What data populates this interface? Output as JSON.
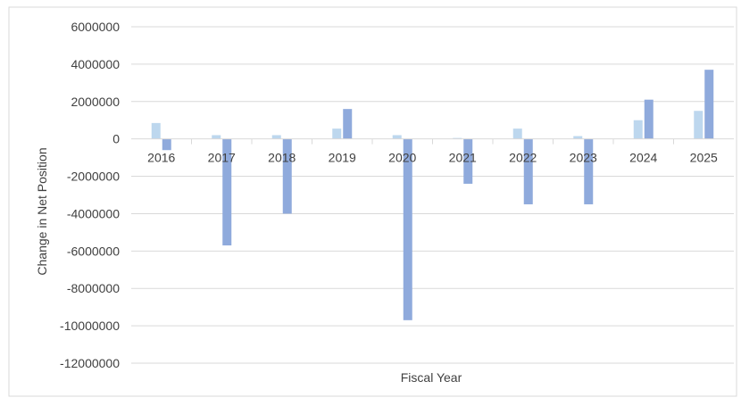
{
  "chart_data": {
    "type": "bar",
    "title": "",
    "xlabel": "Fiscal Year",
    "ylabel": "Change in Net Position",
    "ylim": [
      -12000000,
      6000000
    ],
    "yticks": [
      6000000,
      4000000,
      2000000,
      0,
      -2000000,
      -4000000,
      -6000000,
      -8000000,
      -10000000,
      -12000000
    ],
    "ytick_labels": [
      "6000000",
      "4000000",
      "2000000",
      "0",
      "-2000000",
      "-4000000",
      "-6000000",
      "-8000000",
      "-10000000",
      "-12000000"
    ],
    "grid": true,
    "legend": "none",
    "categories": [
      "2016",
      "2017",
      "2018",
      "2019",
      "2020",
      "2021",
      "2022",
      "2023",
      "2024",
      "2025"
    ],
    "series": [
      {
        "color": "#bdd7ee",
        "values": [
          850000,
          200000,
          200000,
          550000,
          200000,
          50000,
          550000,
          150000,
          1000000,
          1500000
        ]
      },
      {
        "color": "#8faadc",
        "values": [
          -600000,
          -5700000,
          -4000000,
          1600000,
          -9700000,
          -2400000,
          -3500000,
          -3500000,
          2100000,
          3700000
        ]
      }
    ]
  }
}
